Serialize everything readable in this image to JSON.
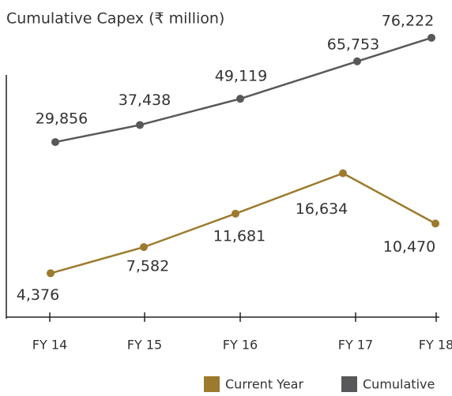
{
  "chart_data": {
    "type": "line",
    "title": "Cumulative Capex (₹ million)",
    "categories": [
      "FY 14",
      "FY 15",
      "FY 16",
      "FY 17",
      "FY 18"
    ],
    "series": [
      {
        "name": "Current Year",
        "color": "#9c7a2e",
        "values": [
          4376,
          7582,
          11681,
          16634,
          10470
        ],
        "value_labels": [
          "4,376",
          "7,582",
          "11,681",
          "16,634",
          "10,470"
        ]
      },
      {
        "name": "Cumulative",
        "color": "#58585a",
        "axis": "y2",
        "values": [
          29856,
          37438,
          49119,
          65753,
          76222
        ],
        "value_labels": [
          "29,856",
          "37,438",
          "49,119",
          "65,753",
          "76,222"
        ]
      }
    ],
    "ylim": [
      -1000,
      34000
    ],
    "y2lim": [
      -48000,
      79000
    ]
  }
}
